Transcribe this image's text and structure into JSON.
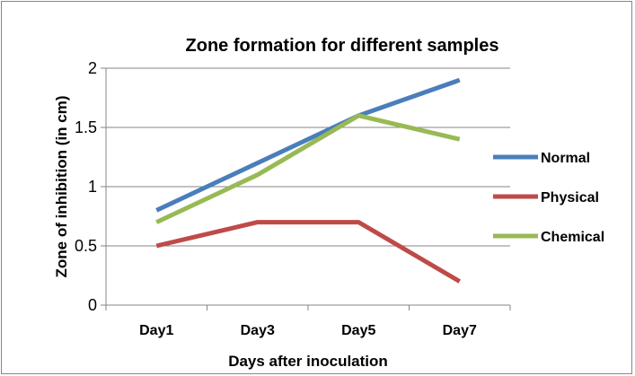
{
  "chart_data": {
    "type": "line",
    "title": "Zone formation for different samples",
    "xlabel": "Days after inoculation",
    "ylabel": "Zone of inhibition (in cm)",
    "categories": [
      "Day1",
      "Day3",
      "Day5",
      "Day7"
    ],
    "ylim": [
      0,
      2
    ],
    "yticks": [
      0,
      0.5,
      1,
      1.5,
      2
    ],
    "ytick_labels": [
      "0",
      "0.5",
      "1",
      "1.5",
      "2"
    ],
    "grid": true,
    "legend_position": "right",
    "series": [
      {
        "name": "Normal",
        "color": "#4a7ebb",
        "values": [
          0.8,
          1.2,
          1.6,
          1.9
        ]
      },
      {
        "name": "Physical",
        "color": "#be4b48",
        "values": [
          0.5,
          0.7,
          0.7,
          0.2
        ]
      },
      {
        "name": "Chemical",
        "color": "#98b954",
        "values": [
          0.7,
          1.1,
          1.6,
          1.4
        ]
      }
    ]
  }
}
